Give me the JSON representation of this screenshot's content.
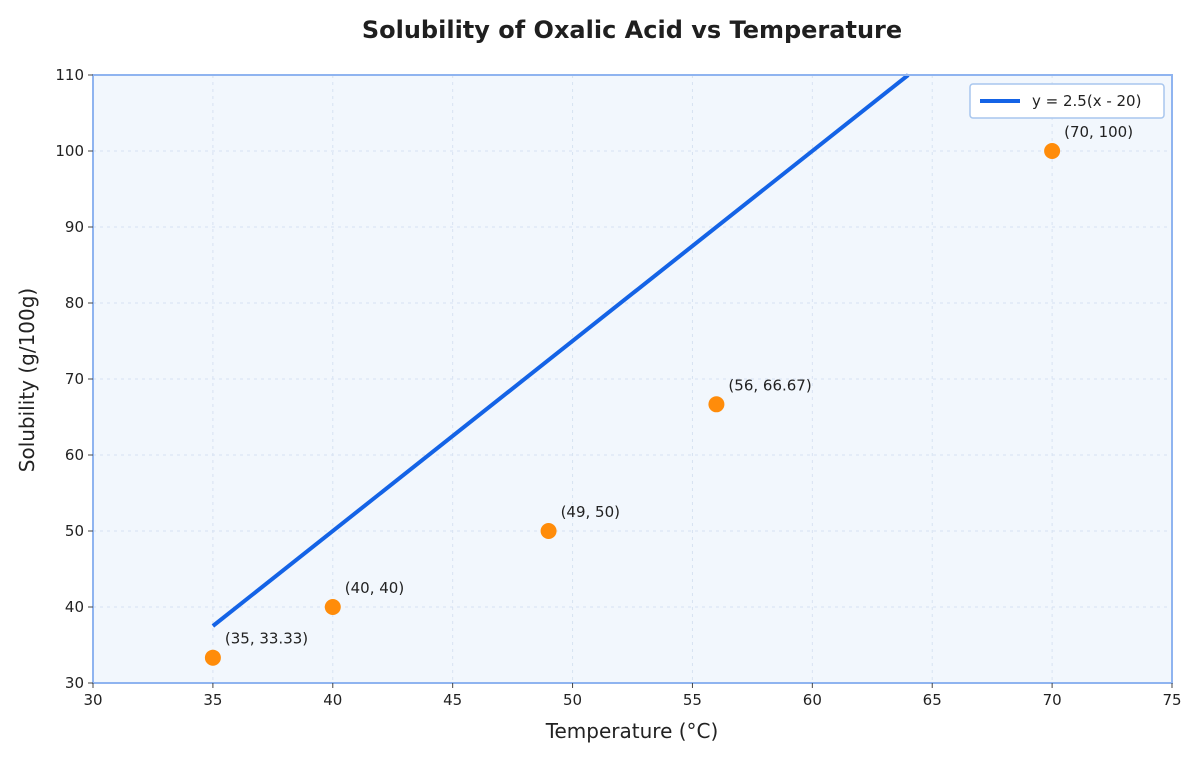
{
  "chart_data": {
    "type": "scatter",
    "title": "Solubility of Oxalic Acid vs Temperature",
    "xlabel": "Temperature (°C)",
    "ylabel": "Solubility (g/100g)",
    "xlim": [
      30,
      75
    ],
    "ylim": [
      30,
      110
    ],
    "x_ticks": [
      30,
      35,
      40,
      45,
      50,
      55,
      60,
      65,
      70,
      75
    ],
    "y_ticks": [
      30,
      40,
      50,
      60,
      70,
      80,
      90,
      100,
      110
    ],
    "grid": true,
    "legend_position": "top-right",
    "points": [
      {
        "x": 35,
        "y": 33.33,
        "label": "(35, 33.33)"
      },
      {
        "x": 40,
        "y": 40,
        "label": "(40, 40)"
      },
      {
        "x": 49,
        "y": 50,
        "label": "(49, 50)"
      },
      {
        "x": 56,
        "y": 66.67,
        "label": "(56, 66.67)"
      },
      {
        "x": 70,
        "y": 100,
        "label": "(70, 100)"
      }
    ],
    "line": {
      "name": "y = 2.5(x - 20)",
      "slope": 2.5,
      "x_offset": 20,
      "x_start": 35
    },
    "colors": {
      "line": "#1463e6",
      "points": "#ff8c0a",
      "plot_background": "#f2f7fd",
      "plot_border": "#8fb4f0",
      "legend_border": "#a8c6ee"
    }
  }
}
